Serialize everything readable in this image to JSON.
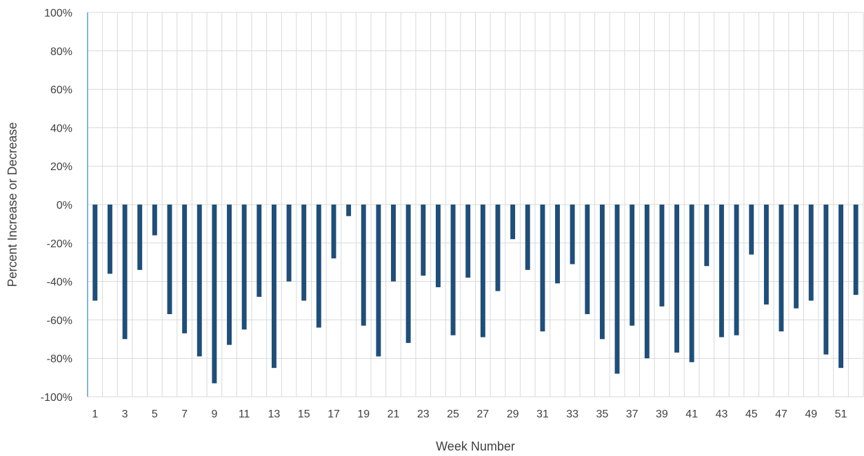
{
  "chart_data": {
    "type": "bar",
    "xlabel": "Week Number",
    "ylabel": "Percent Increase or Decrease",
    "ylim": [
      -100,
      100
    ],
    "ytick_step": 20,
    "ytick_labels": [
      "100%",
      "80%",
      "60%",
      "40%",
      "20%",
      "0%",
      "-20%",
      "-40%",
      "-60%",
      "-80%",
      "-100%"
    ],
    "xtick_labels": [
      "1",
      "3",
      "5",
      "7",
      "9",
      "11",
      "13",
      "15",
      "17",
      "19",
      "21",
      "23",
      "25",
      "27",
      "29",
      "31",
      "33",
      "35",
      "37",
      "39",
      "41",
      "43",
      "45",
      "47",
      "49",
      "51"
    ],
    "grid": true,
    "legend": "none",
    "bar_color": "#1f4e79",
    "categories": [
      1,
      2,
      3,
      4,
      5,
      6,
      7,
      8,
      9,
      10,
      11,
      12,
      13,
      14,
      15,
      16,
      17,
      18,
      19,
      20,
      21,
      22,
      23,
      24,
      25,
      26,
      27,
      28,
      29,
      30,
      31,
      32,
      33,
      34,
      35,
      36,
      37,
      38,
      39,
      40,
      41,
      42,
      43,
      44,
      45,
      46,
      47,
      48,
      49,
      50,
      51,
      52
    ],
    "values": [
      -50,
      -36,
      -70,
      -34,
      -16,
      -57,
      -67,
      -79,
      -93,
      -73,
      -65,
      -48,
      -85,
      -40,
      -50,
      -64,
      -28,
      -6,
      -63,
      -79,
      -40,
      -72,
      -37,
      -43,
      -68,
      -38,
      -69,
      -45,
      -18,
      -34,
      -66,
      -41,
      -31,
      -57,
      -70,
      -88,
      -63,
      -80,
      -53,
      -77,
      -82,
      -32,
      -69,
      -68,
      -26,
      -52,
      -66,
      -54,
      -50,
      -78,
      -85,
      -47
    ]
  }
}
